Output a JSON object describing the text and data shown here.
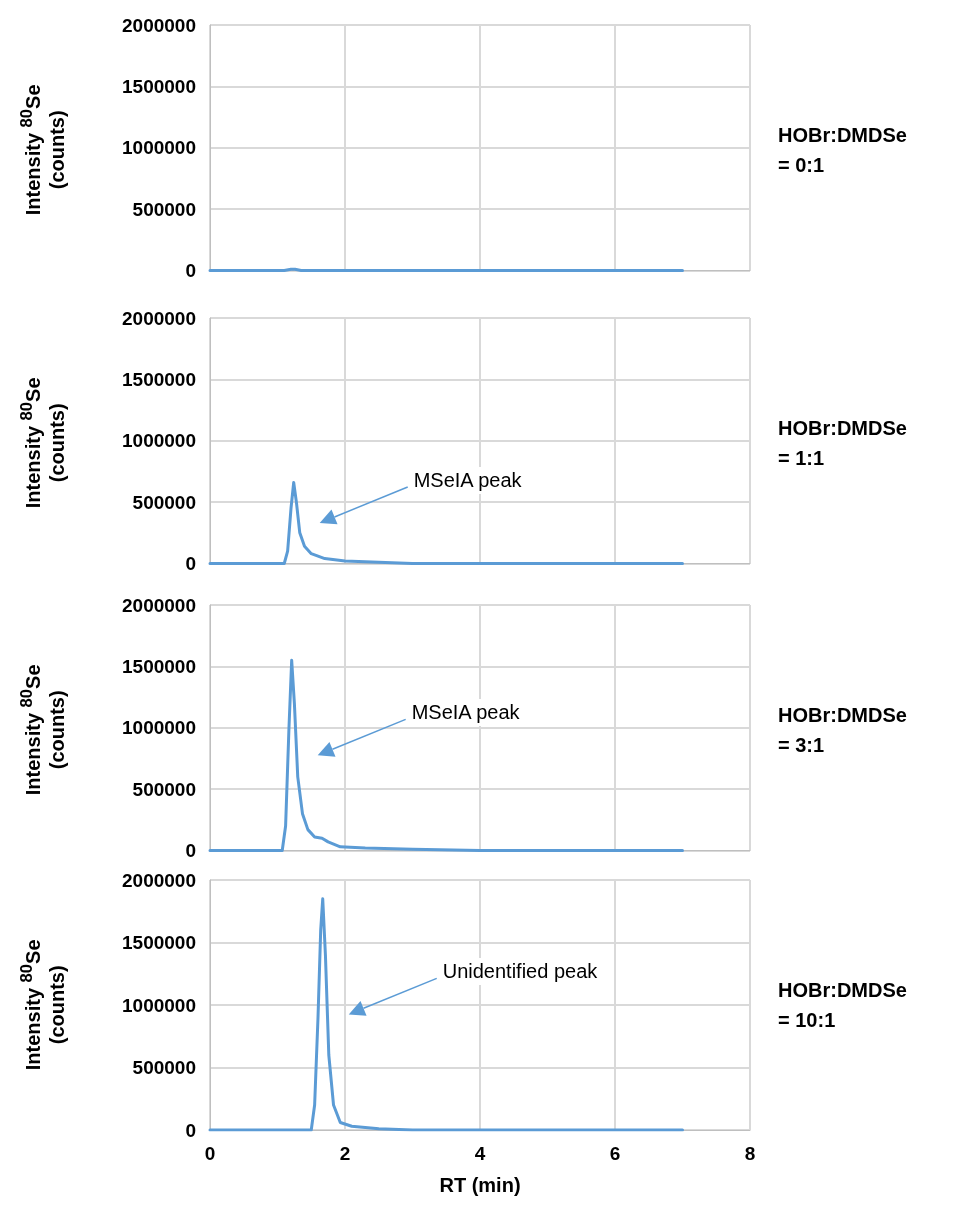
{
  "chart_data": [
    {
      "type": "line",
      "ylabel": "Intensity $^{80}$Se (counts)",
      "x": [
        0,
        1.1,
        1.2,
        1.26,
        1.35,
        1.5,
        7
      ],
      "series": [
        {
          "color": "#5b9bd5",
          "values": [
            0,
            0,
            10000,
            10000,
            0,
            0,
            0
          ]
        }
      ],
      "annotations": [
        "HOBr:DMDSe = 0:1"
      ],
      "xlim": [
        0,
        8
      ],
      "xticks": [
        0,
        2,
        4,
        6,
        8
      ],
      "ylim": [
        0,
        2000000
      ],
      "yticks": [
        0,
        500000,
        1000000,
        1500000,
        2000000
      ],
      "grid": true,
      "marker": "none",
      "tick_labels": "y"
    },
    {
      "type": "line",
      "ylabel": "Intensity $^{80}$Se (counts)",
      "x": [
        0,
        1.1,
        1.15,
        1.2,
        1.24,
        1.28,
        1.33,
        1.4,
        1.5,
        1.7,
        2,
        2.5,
        3,
        4,
        7
      ],
      "series": [
        {
          "color": "#5b9bd5",
          "values": [
            0,
            0,
            100000,
            450000,
            660000,
            500000,
            250000,
            140000,
            80000,
            40000,
            20000,
            10000,
            0,
            0,
            0
          ]
        }
      ],
      "annotations": [
        "MSeIA peak",
        "HOBr:DMDSe = 1:1"
      ],
      "xlim": [
        0,
        8
      ],
      "xticks": [
        0,
        2,
        4,
        6,
        8
      ],
      "ylim": [
        0,
        2000000
      ],
      "yticks": [
        0,
        500000,
        1000000,
        1500000,
        2000000
      ],
      "grid": true,
      "marker": "none",
      "tick_labels": "y"
    },
    {
      "type": "line",
      "ylabel": "Intensity $^{80}$Se (counts)",
      "x": [
        0,
        1.07,
        1.12,
        1.17,
        1.21,
        1.25,
        1.3,
        1.37,
        1.45,
        1.55,
        1.66,
        1.75,
        1.93,
        2.3,
        3,
        4,
        7
      ],
      "series": [
        {
          "color": "#5b9bd5",
          "values": [
            0,
            0,
            200000,
            1000000,
            1550000,
            1200000,
            600000,
            300000,
            170000,
            110000,
            100000,
            70000,
            30000,
            20000,
            10000,
            0,
            0
          ]
        }
      ],
      "annotations": [
        "MSeIA peak",
        "HOBr:DMDSe = 3:1"
      ],
      "xlim": [
        0,
        8
      ],
      "xticks": [
        0,
        2,
        4,
        6,
        8
      ],
      "ylim": [
        0,
        2000000
      ],
      "yticks": [
        0,
        500000,
        1000000,
        1500000,
        2000000
      ],
      "grid": true,
      "marker": "none",
      "tick_labels": "y"
    },
    {
      "type": "line",
      "xlabel": "RT (min)",
      "ylabel": "Intensity $^{80}$Se (counts)",
      "x": [
        0,
        1.5,
        1.55,
        1.6,
        1.64,
        1.67,
        1.71,
        1.76,
        1.83,
        1.93,
        2.1,
        2.5,
        3,
        4,
        7
      ],
      "series": [
        {
          "color": "#5b9bd5",
          "values": [
            0,
            0,
            200000,
            900000,
            1600000,
            1850000,
            1400000,
            600000,
            200000,
            60000,
            30000,
            10000,
            0,
            0,
            0
          ]
        }
      ],
      "annotations": [
        "Unidentified peak",
        "HOBr:DMDSe = 10:1"
      ],
      "xlim": [
        0,
        8
      ],
      "xticks": [
        0,
        2,
        4,
        6,
        8
      ],
      "ylim": [
        0,
        2000000
      ],
      "yticks": [
        0,
        500000,
        1000000,
        1500000,
        2000000
      ],
      "grid": true,
      "marker": "none"
    }
  ]
}
